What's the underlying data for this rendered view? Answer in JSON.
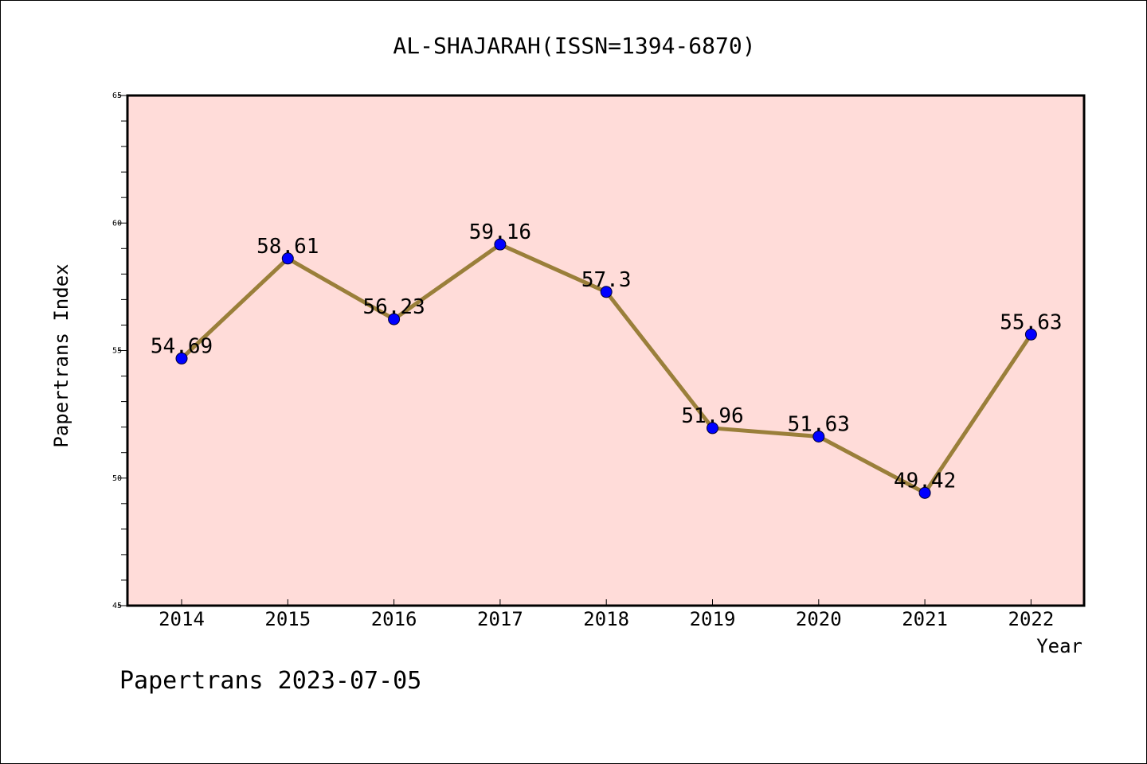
{
  "chart_data": {
    "type": "line",
    "title": "AL-SHAJARAH(ISSN=1394-6870)",
    "xlabel": "Year",
    "ylabel": "Papertrans Index",
    "categories": [
      "2014",
      "2015",
      "2016",
      "2017",
      "2018",
      "2019",
      "2020",
      "2021",
      "2022"
    ],
    "values": [
      54.69,
      58.61,
      56.23,
      59.16,
      57.3,
      51.96,
      51.63,
      49.42,
      55.63
    ],
    "data_labels": [
      "54.69",
      "58.61",
      "56.23",
      "59.16",
      "57.3",
      "51.96",
      "51.63",
      "49.42",
      "55.63"
    ],
    "ylim": [
      45,
      65
    ],
    "yticks": [
      45,
      50,
      55,
      60,
      65
    ],
    "grid": false,
    "legend": "none"
  },
  "footer": "Papertrans 2023-07-05",
  "colors": {
    "plot_background": "#ffdcd9",
    "line": "#9a7f3a",
    "marker": "#0000ff"
  }
}
